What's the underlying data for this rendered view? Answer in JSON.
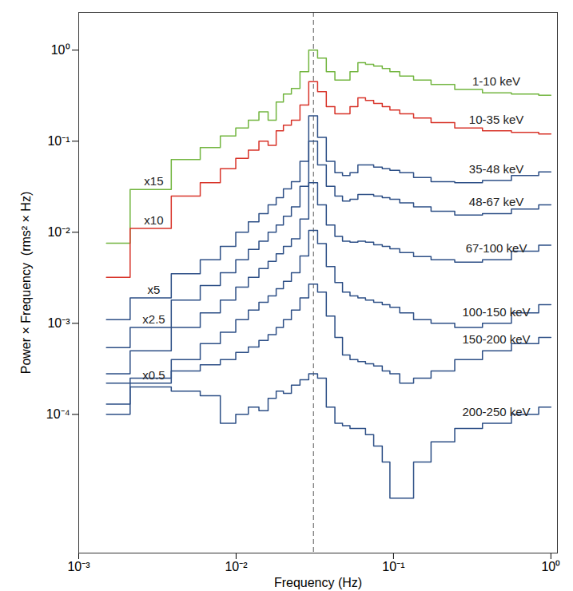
{
  "chart_data": {
    "type": "line",
    "x_label": "Frequency (Hz)",
    "y_label": "Power × Frequency  (rms² × Hz)",
    "log": true,
    "line_style": "step",
    "xlim": [
      0.001,
      1.1
    ],
    "xticks": [
      {
        "value": 0.001,
        "label": "10⁻³"
      },
      {
        "value": 0.01,
        "label": "10⁻²"
      },
      {
        "value": 0.1,
        "label": "10⁻¹"
      },
      {
        "value": 1,
        "label": "10⁰"
      }
    ],
    "ylim": [
      3e-06,
      2.6
    ],
    "yticks": [
      {
        "value": 0.0001,
        "label": "10⁻⁴"
      },
      {
        "value": 0.001,
        "label": "10⁻³"
      },
      {
        "value": 0.01,
        "label": "10⁻²"
      },
      {
        "value": 0.1,
        "label": "10⁻¹"
      },
      {
        "value": 1,
        "label": "10⁰"
      }
    ],
    "reference_line": {
      "x": 0.031,
      "line_style": "dashed"
    },
    "x": [
      0.0015,
      0.003,
      0.005,
      0.007,
      0.009,
      0.011,
      0.013,
      0.015,
      0.017,
      0.019,
      0.021,
      0.024,
      0.027,
      0.031,
      0.035,
      0.04,
      0.045,
      0.05,
      0.056,
      0.063,
      0.07,
      0.08,
      0.09,
      0.1,
      0.12,
      0.15,
      0.2,
      0.3,
      0.45,
      0.7,
      1.0
    ],
    "series": [
      {
        "name": "1-10 keV",
        "color": "#72b53f",
        "values": [
          0.0076,
          0.0295,
          0.063,
          0.085,
          0.114,
          0.14,
          0.17,
          0.21,
          0.17,
          0.27,
          0.33,
          0.38,
          0.58,
          1.0,
          0.82,
          0.58,
          0.47,
          0.47,
          0.58,
          0.73,
          0.7,
          0.67,
          0.63,
          0.58,
          0.52,
          0.47,
          0.42,
          0.37,
          0.34,
          0.33,
          0.32
        ]
      },
      {
        "name": "10-35 keV",
        "color": "#d8342a",
        "values": [
          0.0032,
          0.011,
          0.025,
          0.035,
          0.05,
          0.065,
          0.08,
          0.1,
          0.09,
          0.13,
          0.15,
          0.17,
          0.25,
          0.45,
          0.35,
          0.24,
          0.2,
          0.2,
          0.24,
          0.3,
          0.28,
          0.26,
          0.24,
          0.22,
          0.2,
          0.18,
          0.16,
          0.14,
          0.13,
          0.125,
          0.12
        ]
      },
      {
        "name": "35-48 keV",
        "color": "#2d4f86",
        "values": [
          0.0011,
          0.0019,
          0.0035,
          0.005,
          0.007,
          0.01,
          0.013,
          0.016,
          0.02,
          0.024,
          0.03,
          0.036,
          0.06,
          0.19,
          0.11,
          0.06,
          0.045,
          0.042,
          0.045,
          0.055,
          0.055,
          0.052,
          0.05,
          0.048,
          0.045,
          0.04,
          0.036,
          0.035,
          0.037,
          0.042,
          0.046
        ]
      },
      {
        "name": "48-67 keV",
        "color": "#2d4f86",
        "values": [
          0.00054,
          0.0009,
          0.0018,
          0.0026,
          0.0036,
          0.005,
          0.0065,
          0.008,
          0.01,
          0.012,
          0.015,
          0.019,
          0.032,
          0.1,
          0.055,
          0.032,
          0.025,
          0.022,
          0.023,
          0.026,
          0.026,
          0.025,
          0.024,
          0.023,
          0.021,
          0.019,
          0.017,
          0.0155,
          0.016,
          0.018,
          0.02
        ]
      },
      {
        "name": "67-100 keV",
        "color": "#2d4f86",
        "values": [
          0.00028,
          0.0005,
          0.0009,
          0.0013,
          0.0018,
          0.0025,
          0.0032,
          0.004,
          0.0048,
          0.0058,
          0.007,
          0.0085,
          0.014,
          0.035,
          0.02,
          0.012,
          0.009,
          0.008,
          0.0078,
          0.008,
          0.0078,
          0.0073,
          0.007,
          0.0066,
          0.006,
          0.0054,
          0.005,
          0.0047,
          0.005,
          0.0062,
          0.0072
        ]
      },
      {
        "name": "100-150 keV",
        "color": "#2d4f86",
        "values": [
          0.00013,
          0.00022,
          0.0004,
          0.0006,
          0.0008,
          0.0011,
          0.0014,
          0.0017,
          0.002,
          0.0024,
          0.0029,
          0.0036,
          0.0055,
          0.0105,
          0.0075,
          0.0042,
          0.0028,
          0.0022,
          0.002,
          0.0019,
          0.0018,
          0.0017,
          0.0016,
          0.0015,
          0.0013,
          0.0011,
          0.001,
          0.0009,
          0.001,
          0.0013,
          0.0016
        ]
      },
      {
        "name": "150-200 keV",
        "color": "#2d4f86",
        "values": [
          0.00022,
          0.00025,
          0.0003,
          0.00035,
          0.0004,
          0.00048,
          0.00055,
          0.00065,
          0.00075,
          0.0009,
          0.0011,
          0.0014,
          0.0019,
          0.0027,
          0.0022,
          0.0012,
          0.0007,
          0.00045,
          0.0004,
          0.00038,
          0.00036,
          0.00034,
          0.0003,
          0.00028,
          0.00022,
          0.00025,
          0.0003,
          0.0004,
          0.0005,
          0.0006,
          0.0007
        ]
      },
      {
        "name": "200-250 keV",
        "color": "#2d4f86",
        "values": [
          0.0001,
          0.0002,
          0.00018,
          0.00016,
          8e-05,
          0.0001,
          0.00012,
          0.00011,
          0.00015,
          0.00018,
          0.00017,
          0.00021,
          0.00024,
          0.00028,
          0.00025,
          0.00012,
          8e-05,
          7.5e-05,
          7e-05,
          7e-05,
          6e-05,
          4.5e-05,
          3e-05,
          1.2e-05,
          1.2e-05,
          3e-05,
          5e-05,
          7e-05,
          8e-05,
          0.0001,
          0.00012
        ]
      }
    ],
    "annotations": [
      {
        "text": "x15",
        "series": "1-10 keV"
      },
      {
        "text": "x10",
        "series": "10-35 keV"
      },
      {
        "text": "x5",
        "series": "35-48 keV"
      },
      {
        "text": "x2.5",
        "series": "48-67 keV"
      },
      {
        "text": "x0.5",
        "series": "100-150 keV"
      }
    ]
  }
}
